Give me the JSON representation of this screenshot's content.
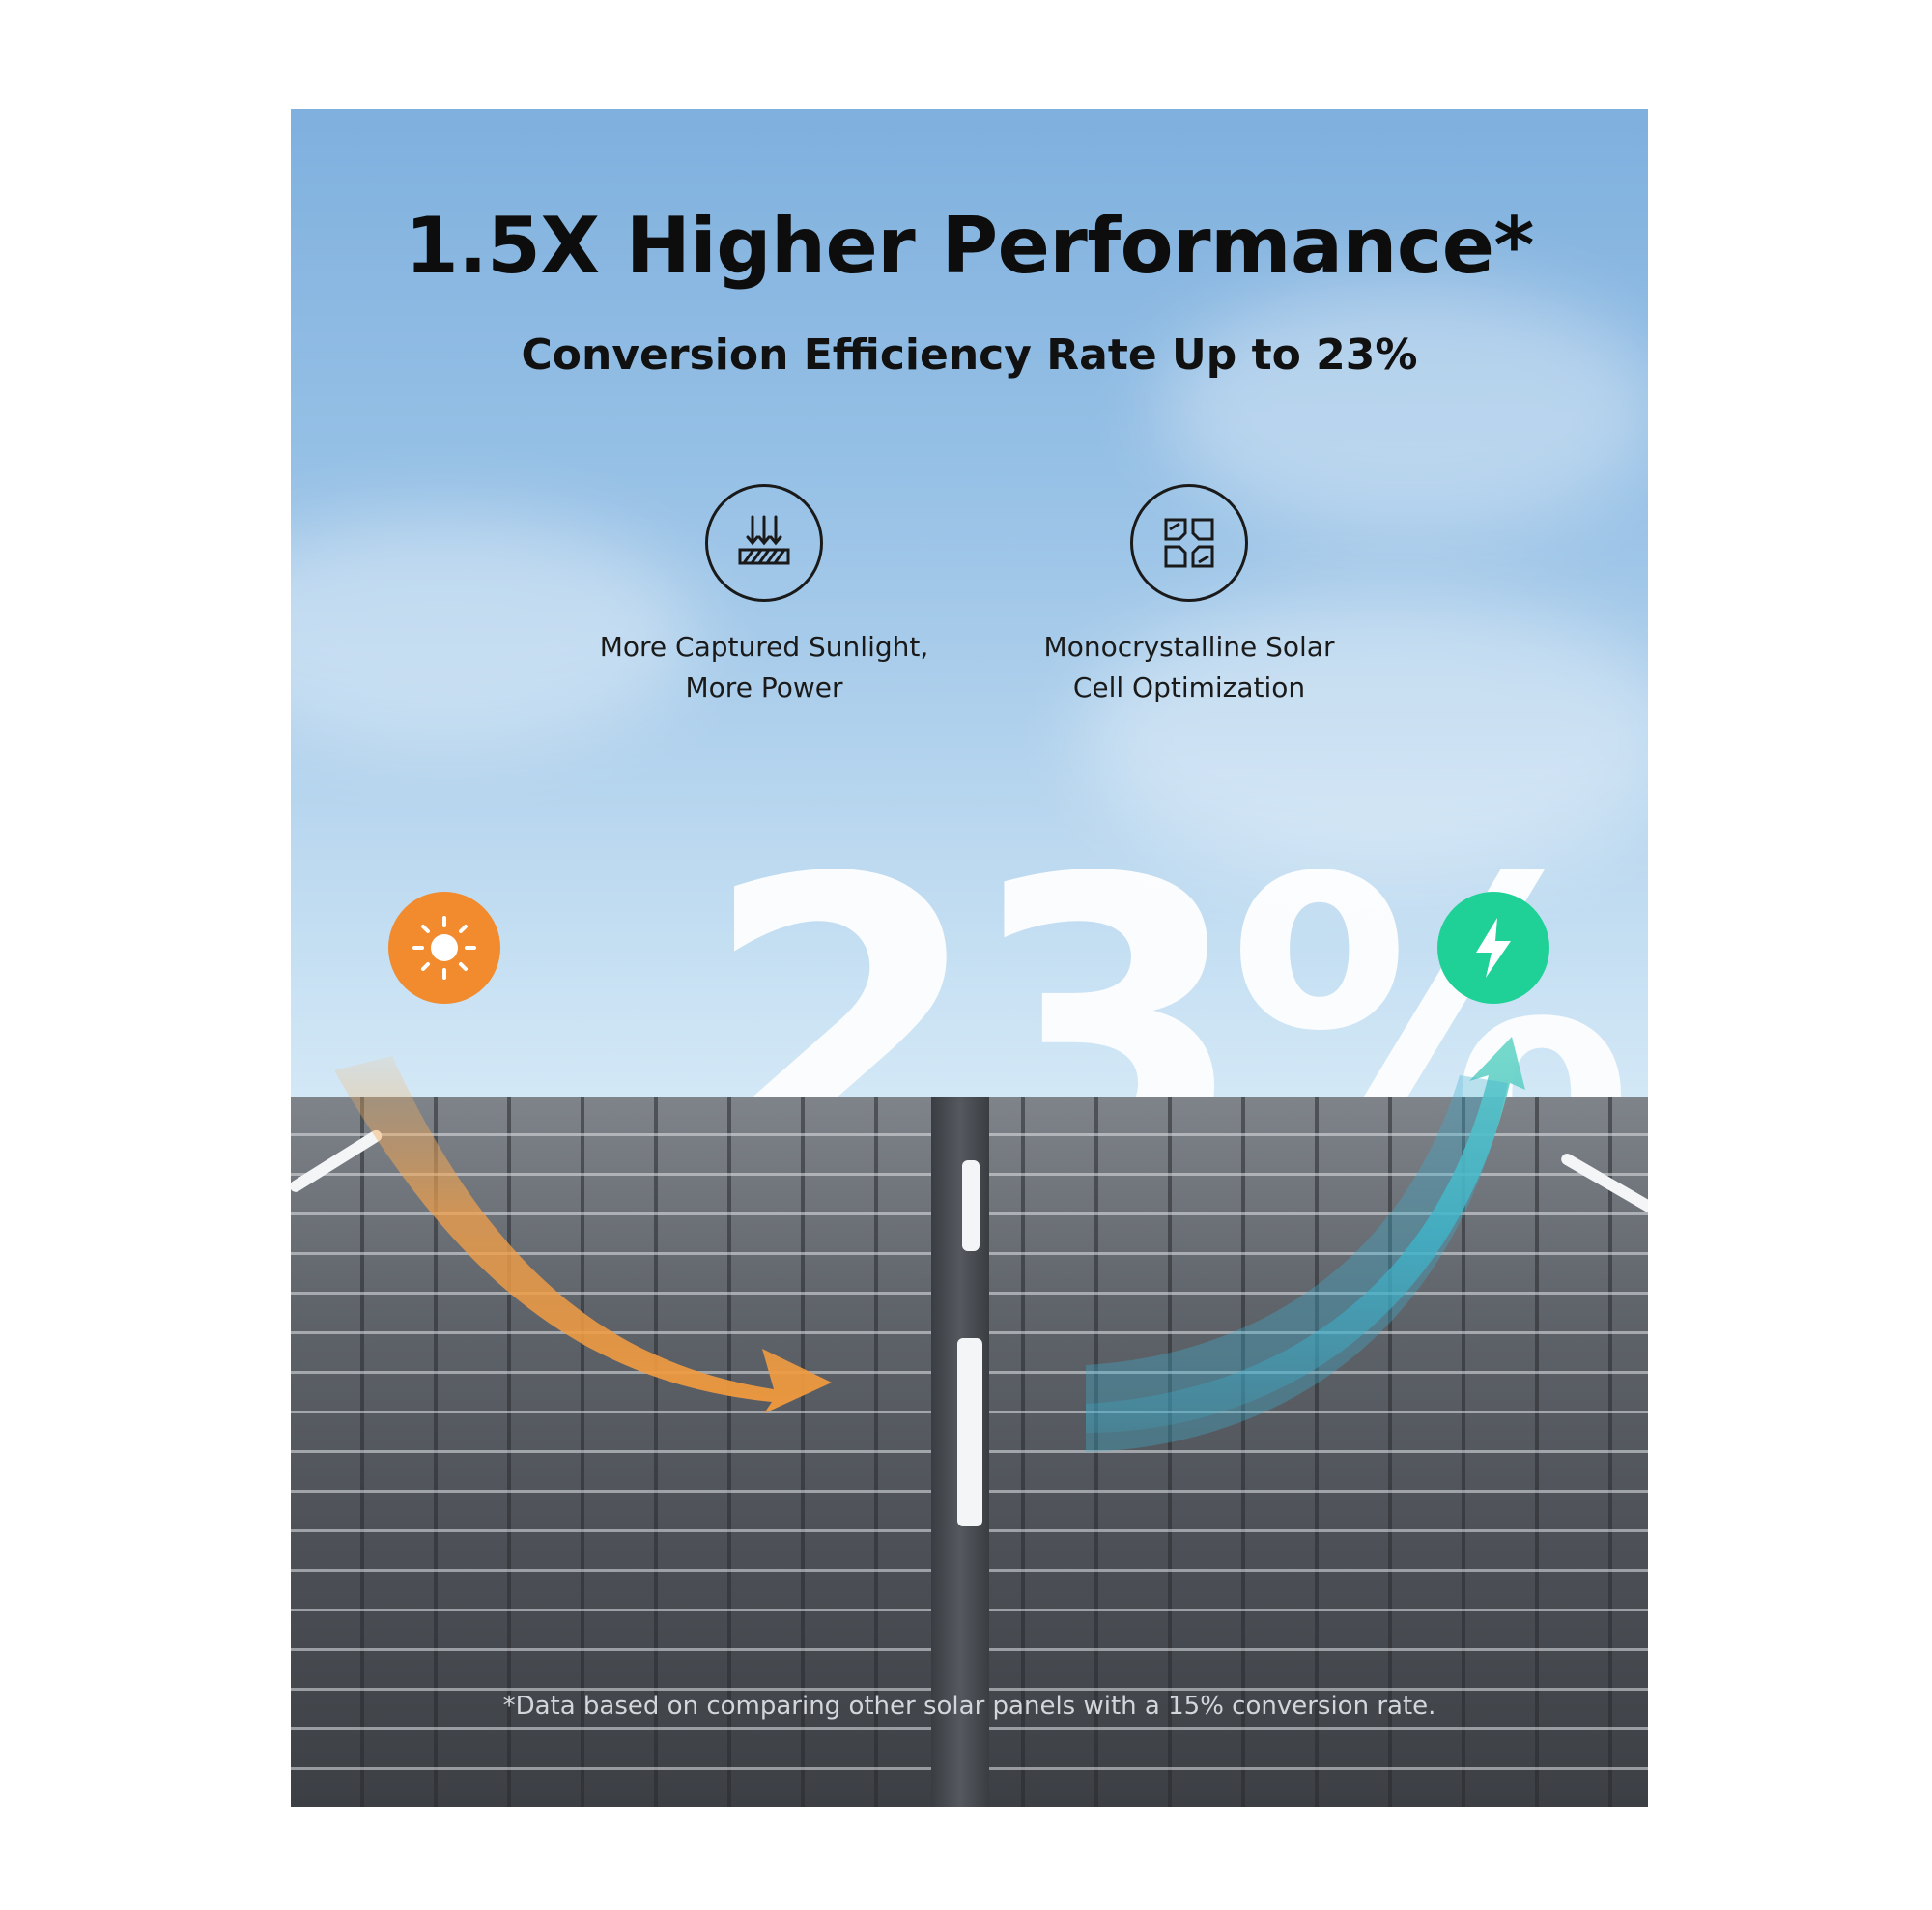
{
  "headline": "1.5X Higher Performance*",
  "subheadline": "Conversion Efficiency Rate Up to 23%",
  "features": [
    {
      "icon": "sunlight-capture-icon",
      "line1": "More Captured Sunlight,",
      "line2": "More Power"
    },
    {
      "icon": "solar-cell-grid-icon",
      "line1": "Monocrystalline Solar",
      "line2": "Cell Optimization"
    }
  ],
  "big_figure": "23%",
  "badges": {
    "sun": {
      "icon": "sun-icon",
      "color": "#f28a2e"
    },
    "power": {
      "icon": "lightning-bolt-icon",
      "color": "#1fd196"
    }
  },
  "footnote": "*Data based on comparing other solar panels with a 15% conversion rate.",
  "colors": {
    "sky": "#97c1e6",
    "panel": "#4c5056",
    "arrow_orange": "#f2a04a",
    "arrow_teal": "#3fb8c8"
  }
}
